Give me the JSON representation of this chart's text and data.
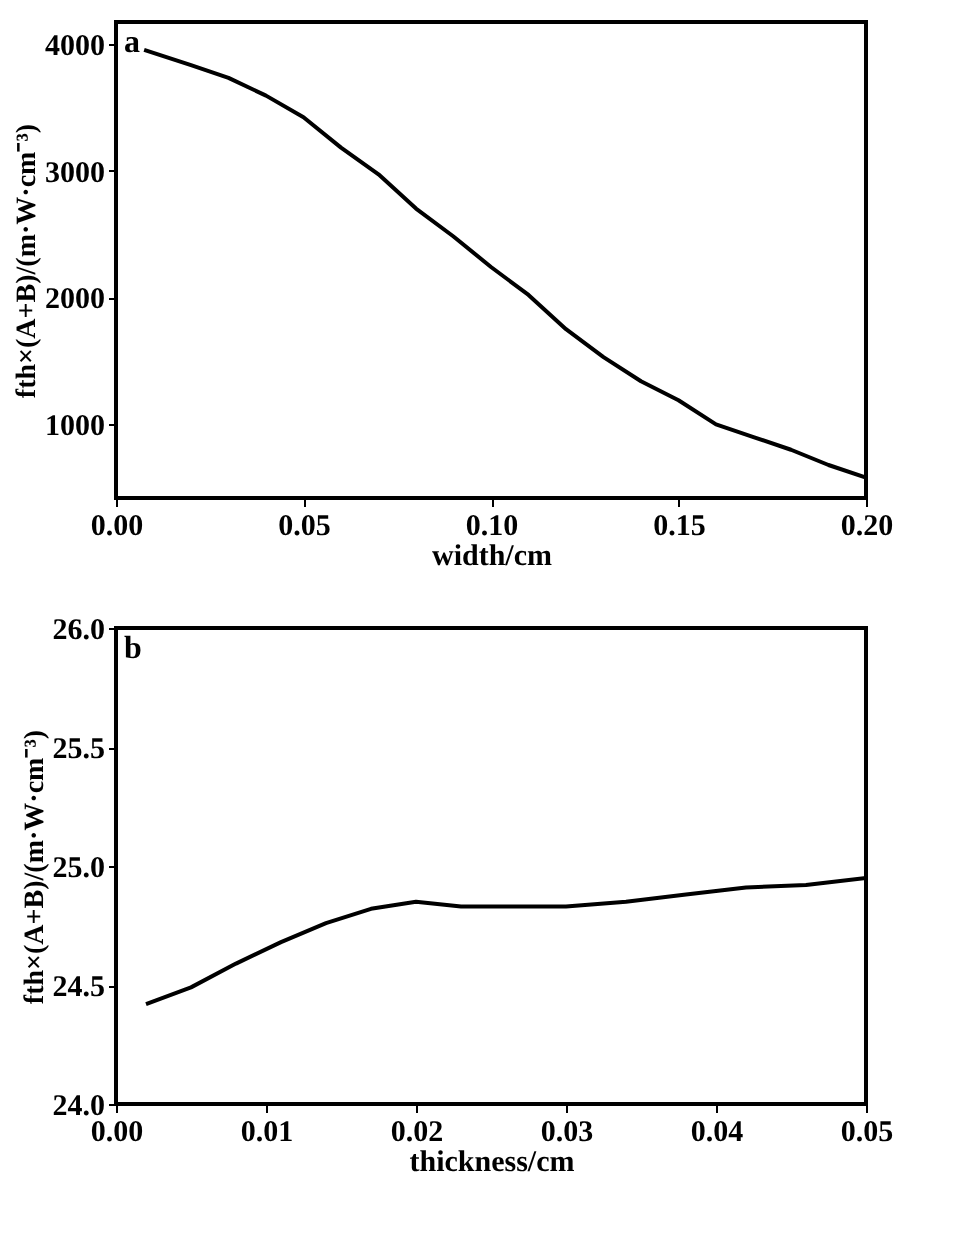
{
  "chart_data": [
    {
      "type": "line",
      "xlabel": "width/cm",
      "ylabel": "fth×(A+B)/(m·W·cm⁻³)",
      "annotations": [
        "a"
      ],
      "xlim": [
        0.0,
        0.2
      ],
      "xticks": [
        {
          "value": 0,
          "label": "0.00"
        },
        0.05,
        {
          "value": 0.1,
          "label": "0.10"
        },
        0.15,
        {
          "value": 0.2,
          "label": "0.20"
        }
      ],
      "ylim": [
        420,
        4170
      ],
      "yticks": [
        1000,
        2000,
        3000,
        4000
      ],
      "grid": false,
      "marker": "none",
      "line_style": "solid",
      "x": [
        0.0075,
        0.02,
        0.03,
        0.04,
        0.05,
        0.06,
        0.07,
        0.08,
        0.09,
        0.1,
        0.11,
        0.12,
        0.13,
        0.14,
        0.15,
        0.16,
        0.17,
        0.18,
        0.19,
        0.2
      ],
      "series": [
        {
          "color": "#000000",
          "values": [
            3950,
            3830,
            3730,
            3590,
            3420,
            3180,
            2970,
            2700,
            2480,
            2240,
            2020,
            1750,
            1530,
            1340,
            1190,
            1000,
            900,
            800,
            680,
            580
          ]
        }
      ]
    },
    {
      "type": "line",
      "xlabel": "thickness/cm",
      "ylabel": "fth×(A+B)/(m·W·cm⁻³)",
      "annotations": [
        "b"
      ],
      "xlim": [
        0.0,
        0.05
      ],
      "xticks": [
        {
          "value": 0,
          "label": "0.00"
        },
        0.01,
        0.02,
        0.03,
        0.04,
        0.05
      ],
      "ylim": [
        24.0,
        26.0
      ],
      "yticks": [
        {
          "value": 24,
          "label": "24.0"
        },
        24.5,
        {
          "value": 25,
          "label": "25.0"
        },
        25.5,
        {
          "value": 26,
          "label": "26.0"
        }
      ],
      "grid": false,
      "marker": "none",
      "line_style": "solid",
      "x": [
        0.002,
        0.005,
        0.008,
        0.011,
        0.014,
        0.017,
        0.02,
        0.023,
        0.026,
        0.03,
        0.034,
        0.038,
        0.042,
        0.046,
        0.05
      ],
      "series": [
        {
          "color": "#000000",
          "values": [
            24.42,
            24.49,
            24.59,
            24.68,
            24.76,
            24.82,
            24.85,
            24.83,
            24.83,
            24.83,
            24.85,
            24.88,
            24.91,
            24.92,
            24.95
          ]
        }
      ]
    }
  ]
}
